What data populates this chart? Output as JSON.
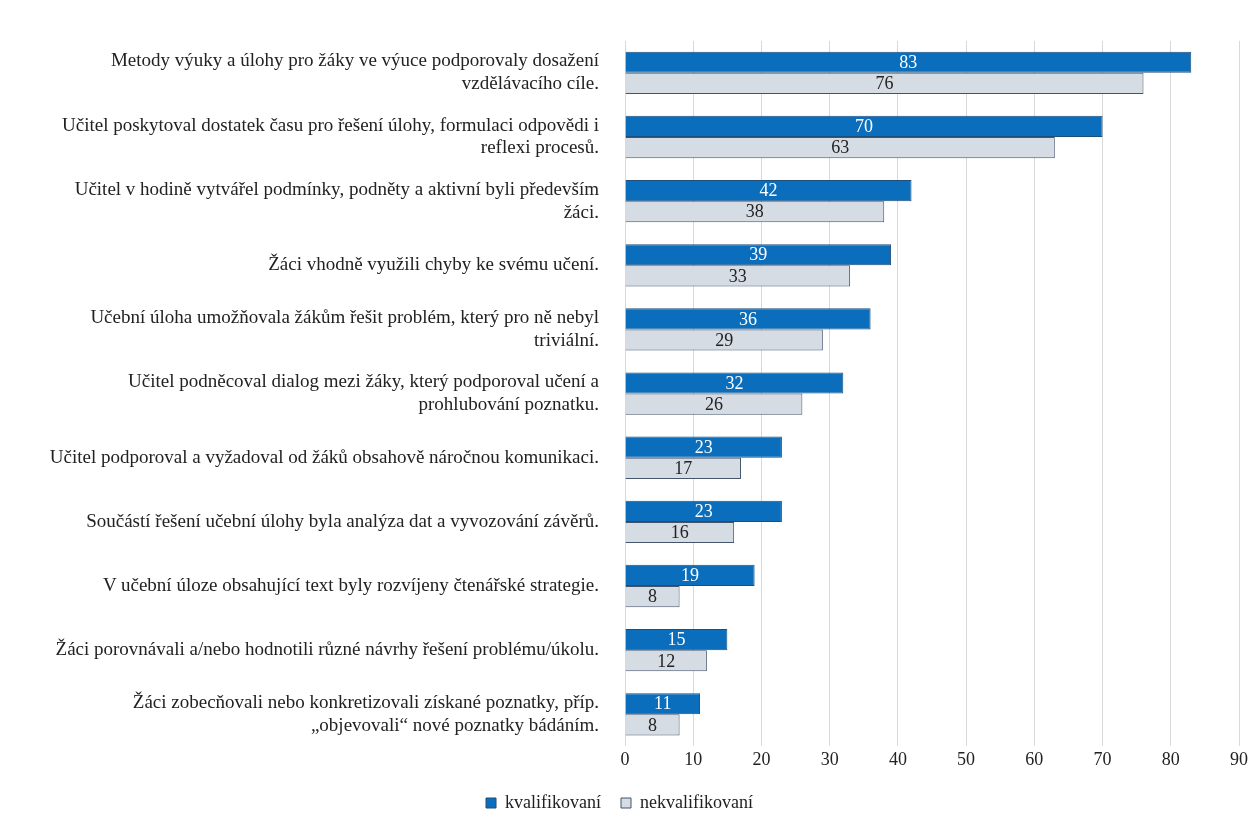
{
  "chart_data": {
    "type": "bar",
    "orientation": "horizontal",
    "categories": [
      "Metody výuky a úlohy pro žáky ve výuce podporovaly dosažení vzdělávacího cíle.",
      "Učitel poskytoval dostatek času pro řešení úlohy, formulaci odpovědi i reflexi procesů.",
      "Učitel v hodině vytvářel podmínky, podněty a aktivní byli především žáci.",
      "Žáci vhodně využili chyby ke svému učení.",
      "Učební úloha umožňovala žákům řešit problém, který pro ně nebyl triviální.",
      "Učitel podněcoval dialog mezi žáky, který podporoval učení a prohlubování poznatku.",
      "Učitel podporoval a vyžadoval od žáků obsahově náročnou komunikaci.",
      "Součástí řešení učební úlohy byla analýza dat a vyvozování závěrů.",
      "V učební úloze obsahující text byly rozvíjeny čtenářské strategie.",
      "Žáci porovnávali a/nebo hodnotili různé návrhy řešení problému/úkolu.",
      "Žáci zobecňovali nebo konkretizovali získané poznatky, příp. „objevovali“ nové poznatky bádáním."
    ],
    "series": [
      {
        "name": "kvalifikovaní",
        "color": "#0a6ebd",
        "values": [
          83,
          70,
          42,
          39,
          36,
          32,
          23,
          23,
          19,
          15,
          11
        ]
      },
      {
        "name": "nekvalifikovaní",
        "color": "#d6dce4",
        "values": [
          76,
          63,
          38,
          33,
          29,
          26,
          17,
          16,
          8,
          12,
          8
        ]
      }
    ],
    "xlim": [
      0,
      90
    ],
    "xticks": [
      0,
      10,
      20,
      30,
      40,
      50,
      60,
      70,
      80,
      90
    ],
    "grid": "x",
    "legend": "bottom",
    "data_labels": true
  }
}
